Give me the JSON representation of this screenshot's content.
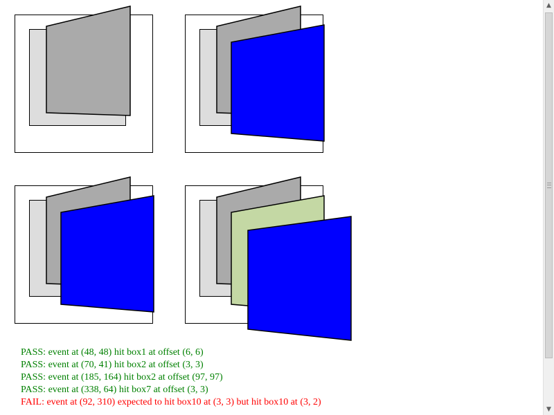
{
  "results": [
    {
      "status": "PASS",
      "text": "PASS: event at (48, 48) hit box1 at offset (6, 6)"
    },
    {
      "status": "PASS",
      "text": "PASS: event at (70, 41) hit box2 at offset (3, 3)"
    },
    {
      "status": "PASS",
      "text": "PASS: event at (185, 164) hit box2 at offset (97, 97)"
    },
    {
      "status": "PASS",
      "text": "PASS: event at (338, 64) hit box7 at offset (3, 3)"
    },
    {
      "status": "FAIL",
      "text": "FAIL: event at (92, 310) expected to hit box10 at (3, 3) but hit box10 at (3, 2)"
    }
  ],
  "colors": {
    "pass": "#008000",
    "fail": "#ff0000",
    "light_box": "#dddddd",
    "gray_panel": "#aaaaaa",
    "blue_panel": "#0000ff",
    "green_panel": "#c4d8a4"
  }
}
